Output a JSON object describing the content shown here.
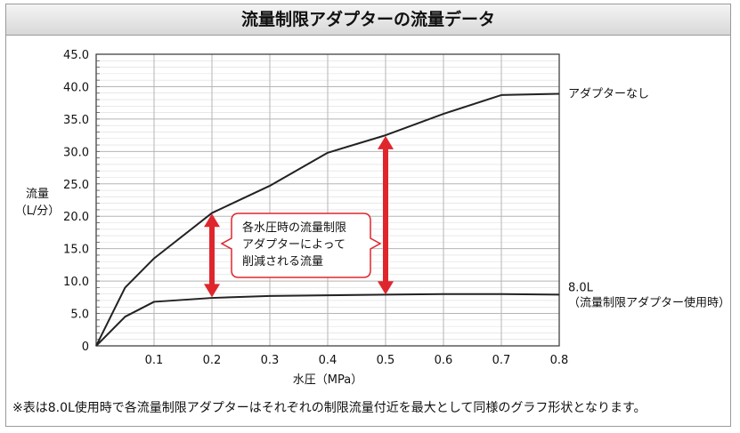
{
  "title": "流量制限アダプターの流量データ",
  "note": "※表は8.0L使用時で各流量制限アダプターはそれぞれの制限流量付近を最大として同様のグラフ形状となります。",
  "colors": {
    "arrow": "#e0262d",
    "callout_border": "#e0262d",
    "line": "#222222",
    "grid": "#b5b5b5"
  },
  "chart_data": {
    "type": "line",
    "xlabel": "水圧（MPa）",
    "ylabel": [
      "流量",
      "（L/分）"
    ],
    "xlim": [
      0,
      0.8
    ],
    "ylim": [
      0,
      45
    ],
    "xticks": [
      0.1,
      0.2,
      0.3,
      0.4,
      0.5,
      0.6,
      0.7,
      0.8
    ],
    "xtick_labels": [
      "0.1",
      "0.2",
      "0.3",
      "0.4",
      "0.5",
      "0.6",
      "0.7",
      "0.8"
    ],
    "yticks": [
      0,
      5,
      10,
      15,
      20,
      25,
      30,
      35,
      40,
      45
    ],
    "ytick_labels": [
      "0",
      "5.0",
      "10.0",
      "15.0",
      "20.0",
      "25.0",
      "30.0",
      "35.0",
      "40.0",
      "45.0"
    ],
    "grid": true,
    "series": [
      {
        "name": "アダプターなし",
        "label_lines": [
          "アダプターなし"
        ],
        "x": [
          0,
          0.05,
          0.1,
          0.2,
          0.3,
          0.4,
          0.5,
          0.6,
          0.7,
          0.8
        ],
        "y": [
          0,
          9.0,
          13.5,
          20.5,
          24.7,
          29.8,
          32.5,
          35.8,
          38.7,
          38.9
        ]
      },
      {
        "name": "8.0L（流量制限アダプター使用時）",
        "label_lines": [
          "8.0L",
          "（流量制限アダプター使用時）"
        ],
        "x": [
          0,
          0.05,
          0.1,
          0.2,
          0.3,
          0.4,
          0.5,
          0.6,
          0.7,
          0.8
        ],
        "y": [
          0,
          4.5,
          6.8,
          7.4,
          7.7,
          7.8,
          7.9,
          8.0,
          8.0,
          7.9
        ]
      }
    ],
    "arrows": [
      {
        "x": 0.2,
        "from": 7.5,
        "to": 20.4
      },
      {
        "x": 0.5,
        "from": 7.9,
        "to": 32.4
      }
    ],
    "annotation": [
      "各水圧時の流量制限",
      "アダプターによって",
      "削減される流量"
    ]
  }
}
